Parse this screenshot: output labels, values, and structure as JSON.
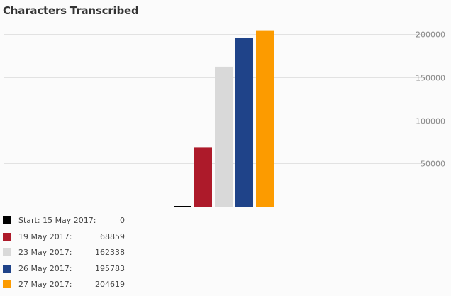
{
  "chart_data": {
    "type": "bar",
    "title": "Characters Transcribed",
    "xlabel": "",
    "ylabel": "",
    "ylim": [
      0,
      215000
    ],
    "yticks": [
      50000,
      100000,
      150000,
      200000
    ],
    "ytick_labels": [
      "50000",
      "100000",
      "150000",
      "200000"
    ],
    "y_axis_position": "right",
    "grid": true,
    "legend_position": "bottom-left",
    "categories": [
      "Start: 15 May 2017:",
      "19 May 2017:",
      "23 May 2017:",
      "26 May 2017:",
      "27 May 2017:"
    ],
    "values": [
      0,
      68859,
      162338,
      195783,
      204619
    ],
    "value_labels": [
      "0",
      "68859",
      "162338",
      "195783",
      "204619"
    ],
    "colors": [
      "#000000",
      "#ad1a2a",
      "#d9d9d9",
      "#1f4389",
      "#fc9b00"
    ]
  }
}
